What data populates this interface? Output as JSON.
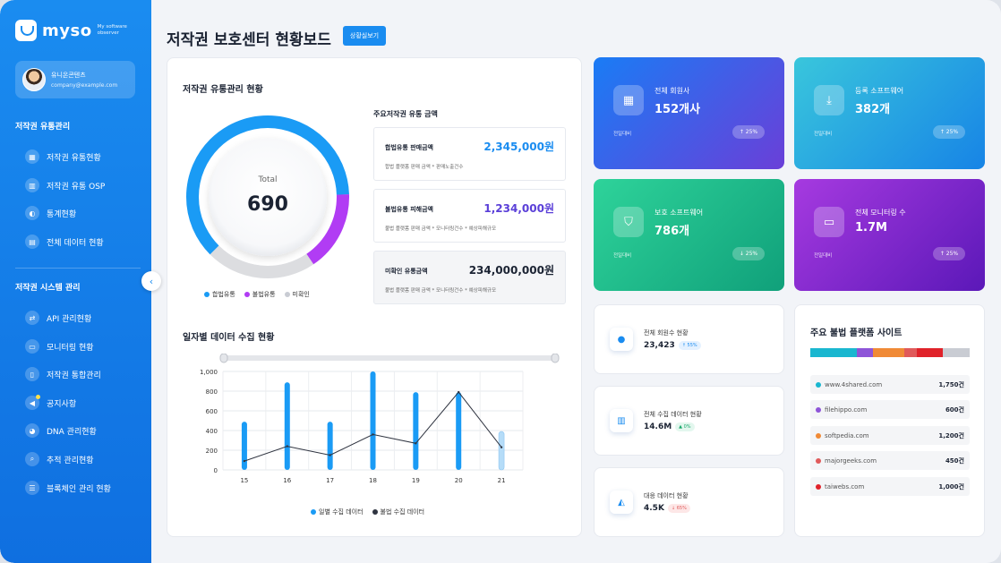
{
  "colors": {
    "primary": "#1a8cf0",
    "legal": "#1a9bf5",
    "illegal": "#b13cf4",
    "unverified": "#dcdde0",
    "line": "#2f3440"
  },
  "brand": {
    "name": "myso",
    "tagline": "My software observer"
  },
  "profile": {
    "name": "유니온콘텐츠",
    "email": "company@example.com"
  },
  "sidebar": {
    "section1_title": "저작권 유통관리",
    "section1_items": [
      {
        "label": "저작권 유통현황",
        "icon": "grid-icon"
      },
      {
        "label": "저작권 유통 OSP",
        "icon": "bar-chart-icon"
      },
      {
        "label": "통계현황",
        "icon": "stats-icon"
      },
      {
        "label": "전체 데이터 현황",
        "icon": "area-chart-icon"
      }
    ],
    "section2_title": "저작권 시스템 관리",
    "section2_items": [
      {
        "label": "API 관리현황",
        "icon": "swap-icon"
      },
      {
        "label": "모니터링 현황",
        "icon": "monitor-icon"
      },
      {
        "label": "저작권 통합관리",
        "icon": "document-icon"
      },
      {
        "label": "공지사항",
        "icon": "megaphone-icon"
      },
      {
        "label": "DNA 관리현황",
        "icon": "pie-icon"
      },
      {
        "label": "추적 관리현황",
        "icon": "search-icon"
      },
      {
        "label": "블록체인 관리 현황",
        "icon": "blocks-icon"
      }
    ]
  },
  "header": {
    "title": "저작권 보호센터 현황보드",
    "detail_button": "상황실보기"
  },
  "distribution": {
    "title": "저작권 유통관리 현황",
    "total_label": "Total",
    "total_value": "690",
    "segments": [
      {
        "name": "합법유통",
        "fraction": 0.62
      },
      {
        "name": "불법유통",
        "fraction": 0.16
      },
      {
        "name": "미확인",
        "fraction": 0.22
      }
    ],
    "amounts_title": "주요저작권 유통 금액",
    "amounts": [
      {
        "label": "합법유통 판매금액",
        "value": "2,345,000원",
        "sub": "합법 플랫폼 판매 금액 * 판매노출건수"
      },
      {
        "label": "불법유통 피해금액",
        "value": "1,234,000원",
        "sub": "불법 플랫폼 판매 금액 * 모니터링건수 * 예상피해규모"
      },
      {
        "label": "미확인 유통금액",
        "value": "234,000,000원",
        "sub": "불법 플랫폼 판매 금액 * 모니터링건수 * 예상피해규모"
      }
    ]
  },
  "daily": {
    "title": "일자별 데이터 수집 현황",
    "legend": [
      "일별 수집 데이터",
      "불법 수집 데이터"
    ]
  },
  "chart_data": {
    "type": "bar",
    "categories": [
      "15",
      "16",
      "17",
      "18",
      "19",
      "20",
      "21"
    ],
    "series": [
      {
        "name": "일별 수집 데이터",
        "type": "bar",
        "values": [
          490,
          890,
          490,
          1000,
          790,
          790,
          390
        ]
      },
      {
        "name": "불법 수집 데이터",
        "type": "line",
        "values": [
          90,
          240,
          150,
          360,
          270,
          790,
          230
        ]
      }
    ],
    "yticks": [
      "0",
      "200",
      "400",
      "600",
      "800",
      "1,000"
    ],
    "ylim": [
      0,
      1000
    ],
    "highlight_last_bar": true
  },
  "kpis": [
    {
      "label": "전체 회원사",
      "value": "152개사",
      "foot": "전일대비",
      "badge": "↑ 25%",
      "icon": "grid-icon",
      "gradient": [
        "#1a7cf5",
        "#6a3fd8"
      ]
    },
    {
      "label": "등록 소프트웨어",
      "value": "382개",
      "foot": "전일대비",
      "badge": "↑ 25%",
      "icon": "download-icon",
      "gradient": [
        "#39c6dc",
        "#1784e6"
      ]
    },
    {
      "label": "보호 소프트웨어",
      "value": "786개",
      "foot": "전일대비",
      "badge": "↓ 25%",
      "icon": "shield-icon",
      "gradient": [
        "#2ed39a",
        "#10a07a"
      ]
    },
    {
      "label": "전체 모니터링 수",
      "value": "1.7M",
      "foot": "전일대비",
      "badge": "↑ 25%",
      "icon": "monitor-icon",
      "gradient": [
        "#a63ae0",
        "#5b18b8"
      ]
    }
  ],
  "stats": [
    {
      "label": "전체 회원수 현황",
      "value": "23,423",
      "badge": "↑ 55%",
      "trend": "up",
      "icon": "user-icon"
    },
    {
      "label": "전체 수집 데이터 현황",
      "value": "14.6M",
      "badge": "▲ 0%",
      "trend": "flat",
      "icon": "bar-chart-icon"
    },
    {
      "label": "대응 데이터 현황",
      "value": "4.5K",
      "badge": "↓ 65%",
      "trend": "down",
      "icon": "area-chart-icon"
    }
  ],
  "sites": {
    "title": "주요 불법 플랫폼 사이트",
    "items": [
      {
        "name": "www.4shared.com",
        "count": "1,750건",
        "color": "#1ab7d0",
        "share": 0.35
      },
      {
        "name": "filehippo.com",
        "count": "600건",
        "color": "#8e55d8",
        "share": 0.12
      },
      {
        "name": "softpedia.com",
        "count": "1,200건",
        "color": "#f08a36",
        "share": 0.24
      },
      {
        "name": "majorgeeks.com",
        "count": "450건",
        "color": "#e05a5a",
        "share": 0.09
      },
      {
        "name": "taiwebs.com",
        "count": "1,000건",
        "color": "#e0222a",
        "share": 0.2
      }
    ],
    "remainder_color": "#c9ccd3"
  }
}
